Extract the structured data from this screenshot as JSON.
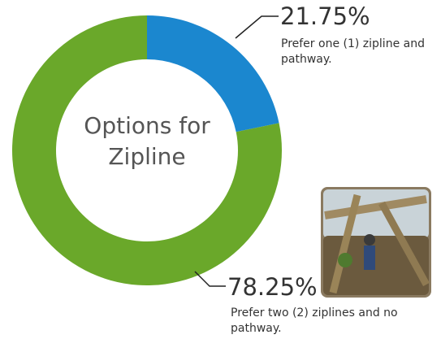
{
  "chart_data": {
    "type": "pie",
    "donut": true,
    "title": "Options for Zipline",
    "categories": [
      "Prefer one (1) zipline and pathway.",
      "Prefer two (2) ziplines and no pathway."
    ],
    "values": [
      21.75,
      78.25
    ],
    "value_labels": [
      "21.75%",
      "78.25%"
    ],
    "colors": [
      "#1b87cf",
      "#6aa82a"
    ]
  }
}
